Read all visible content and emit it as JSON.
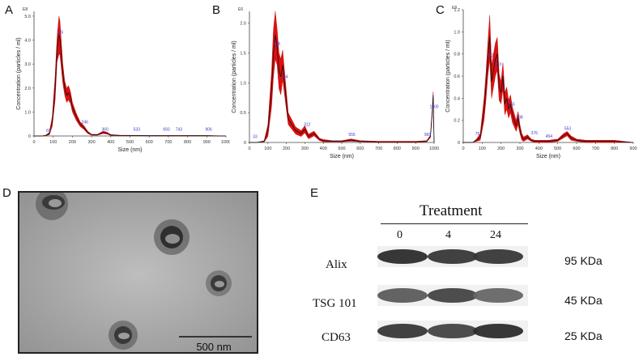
{
  "panels": {
    "A": "A",
    "B": "B",
    "C": "C",
    "D": "D",
    "E": "E"
  },
  "chart_data": [
    {
      "type": "line",
      "panel": "A",
      "exponent": "E8",
      "xlabel": "Size (nm)",
      "ylabel": "Concentration (particles / ml)",
      "xlim": [
        0,
        1000
      ],
      "ylim": [
        0,
        5.2
      ],
      "xticks": [
        "0",
        "100",
        "200",
        "300",
        "400",
        "500",
        "600",
        "700",
        "800",
        "900",
        "1000"
      ],
      "yticks": [
        "0",
        "1.0",
        "2.0",
        "3.0",
        "4.0",
        "5.0"
      ],
      "series": [
        {
          "x": [
            0,
            40,
            60,
            80,
            95,
            110,
            120,
            130,
            135,
            140,
            150,
            160,
            170,
            180,
            190,
            200,
            220,
            240,
            260,
            280,
            300,
            330,
            360,
            380,
            400,
            450,
            500,
            600,
            700,
            800,
            900,
            1000
          ],
          "y": [
            0,
            0,
            0.02,
            0.1,
            0.6,
            2.0,
            3.6,
            4.2,
            4.1,
            3.6,
            2.6,
            2.0,
            1.7,
            1.8,
            1.6,
            1.2,
            0.8,
            0.5,
            0.35,
            0.15,
            0.05,
            0.05,
            0.15,
            0.12,
            0.04,
            0.02,
            0.02,
            0.01,
            0.01,
            0.01,
            0.01,
            0
          ],
          "ci": [
            0,
            0,
            0.01,
            0.05,
            0.2,
            0.5,
            0.5,
            0.8,
            0.7,
            0.6,
            0.4,
            0.3,
            0.3,
            0.3,
            0.25,
            0.2,
            0.15,
            0.1,
            0.08,
            0.05,
            0.02,
            0.02,
            0.05,
            0.04,
            0.02,
            0.01,
            0.01,
            0.01,
            0.01,
            0.01,
            0.01,
            0
          ]
        }
      ],
      "annotations": [
        {
          "x": 135,
          "y": 4.2,
          "label": "135"
        },
        {
          "x": 75,
          "y": 0.1,
          "label": "69"
        },
        {
          "x": 265,
          "y": 0.45,
          "label": "246"
        },
        {
          "x": 370,
          "y": 0.15,
          "label": "360"
        },
        {
          "x": 535,
          "y": 0.15,
          "label": "533"
        },
        {
          "x": 690,
          "y": 0.15,
          "label": "693"
        },
        {
          "x": 755,
          "y": 0.15,
          "label": "743"
        },
        {
          "x": 910,
          "y": 0.15,
          "label": "906"
        }
      ]
    },
    {
      "type": "line",
      "panel": "B",
      "exponent": "E6",
      "xlabel": "Size (nm)",
      "ylabel": "Concentration (particles / ml)",
      "xlim": [
        0,
        1000
      ],
      "ylim": [
        0,
        2.2
      ],
      "xticks": [
        "0",
        "100",
        "200",
        "300",
        "400",
        "500",
        "600",
        "700",
        "800",
        "900",
        "1000"
      ],
      "yticks": [
        "0",
        "0.5",
        "1.0",
        "1.5",
        "2.0"
      ],
      "series": [
        {
          "x": [
            0,
            40,
            80,
            100,
            120,
            130,
            140,
            150,
            160,
            170,
            180,
            190,
            200,
            210,
            230,
            250,
            280,
            300,
            320,
            350,
            380,
            400,
            450,
            500,
            550,
            600,
            700,
            800,
            900,
            960,
            980,
            990,
            995,
            1000
          ],
          "y": [
            0,
            0,
            0.02,
            0.2,
            0.9,
            1.5,
            1.8,
            1.6,
            1.2,
            1.1,
            1.3,
            1.0,
            0.7,
            0.4,
            0.3,
            0.2,
            0.15,
            0.22,
            0.1,
            0.15,
            0.05,
            0.03,
            0.02,
            0.02,
            0.04,
            0.02,
            0.01,
            0.01,
            0.01,
            0.02,
            0.1,
            0.5,
            0.8,
            0
          ],
          "ci": [
            0,
            0,
            0.01,
            0.1,
            0.3,
            0.4,
            0.4,
            0.3,
            0.3,
            0.3,
            0.25,
            0.2,
            0.15,
            0.1,
            0.08,
            0.06,
            0.05,
            0.06,
            0.04,
            0.04,
            0.02,
            0.02,
            0.01,
            0.01,
            0.02,
            0.01,
            0.01,
            0.01,
            0.01,
            0.01,
            0.02,
            0.05,
            0.05,
            0
          ]
        }
      ],
      "annotations": [
        {
          "x": 30,
          "y": 0.05,
          "label": "33"
        },
        {
          "x": 148,
          "y": 1.6,
          "label": "148"
        },
        {
          "x": 190,
          "y": 1.05,
          "label": "194"
        },
        {
          "x": 312,
          "y": 0.25,
          "label": "312"
        },
        {
          "x": 555,
          "y": 0.08,
          "label": "555"
        },
        {
          "x": 965,
          "y": 0.08,
          "label": "969"
        },
        {
          "x": 1000,
          "y": 0.55,
          "label": "1000"
        }
      ]
    },
    {
      "type": "line",
      "panel": "C",
      "exponent": "E8",
      "xlabel": "Size (nm)",
      "ylabel": "Concentration (particles / ml)",
      "xlim": [
        0,
        900
      ],
      "ylim": [
        0,
        1.2
      ],
      "xticks": [
        "0",
        "100",
        "200",
        "300",
        "400",
        "500",
        "600",
        "700",
        "800",
        "900"
      ],
      "yticks": [
        "0",
        "0.2",
        "0.4",
        "0.6",
        "0.8",
        "1.0",
        "1.2"
      ],
      "series": [
        {
          "x": [
            0,
            50,
            70,
            90,
            110,
            120,
            130,
            140,
            150,
            160,
            170,
            180,
            190,
            200,
            210,
            220,
            230,
            240,
            250,
            260,
            270,
            280,
            290,
            300,
            310,
            320,
            340,
            360,
            380,
            400,
            450,
            500,
            530,
            550,
            570,
            600,
            650,
            700,
            800,
            900
          ],
          "y": [
            0,
            0,
            0.02,
            0.05,
            0.3,
            0.5,
            0.75,
            0.95,
            0.55,
            0.65,
            0.75,
            0.8,
            0.5,
            0.45,
            0.6,
            0.35,
            0.4,
            0.3,
            0.35,
            0.25,
            0.2,
            0.15,
            0.22,
            0.12,
            0.05,
            0.03,
            0.05,
            0.02,
            0.01,
            0.01,
            0.01,
            0.02,
            0.06,
            0.08,
            0.04,
            0.02,
            0.01,
            0.01,
            0.01,
            0
          ],
          "ci": [
            0,
            0,
            0.01,
            0.03,
            0.1,
            0.12,
            0.15,
            0.2,
            0.15,
            0.15,
            0.15,
            0.15,
            0.12,
            0.1,
            0.12,
            0.1,
            0.1,
            0.08,
            0.08,
            0.07,
            0.06,
            0.05,
            0.06,
            0.04,
            0.03,
            0.02,
            0.02,
            0.01,
            0.01,
            0.01,
            0.01,
            0.01,
            0.02,
            0.02,
            0.02,
            0.01,
            0.01,
            0.01,
            0.01,
            0
          ]
        }
      ],
      "annotations": [
        {
          "x": 75,
          "y": 0.05,
          "label": "75"
        },
        {
          "x": 143,
          "y": 0.76,
          "label": "143"
        },
        {
          "x": 183,
          "y": 0.68,
          "label": "183"
        },
        {
          "x": 255,
          "y": 0.32,
          "label": "255"
        },
        {
          "x": 298,
          "y": 0.2,
          "label": "298"
        },
        {
          "x": 376,
          "y": 0.06,
          "label": "376"
        },
        {
          "x": 454,
          "y": 0.03,
          "label": "454"
        },
        {
          "x": 553,
          "y": 0.1,
          "label": "553"
        }
      ]
    }
  ],
  "tem": {
    "scale_bar_label": "500 nm"
  },
  "western_blot": {
    "header": "Treatment",
    "lanes": [
      "0",
      "4",
      "24"
    ],
    "rows": [
      {
        "protein": "Alix",
        "size": "95 KDa",
        "intensity": [
          0.9,
          0.85,
          0.85
        ]
      },
      {
        "protein": "TSG 101",
        "size": "45 KDa",
        "intensity": [
          0.7,
          0.8,
          0.65
        ]
      },
      {
        "protein": "CD63",
        "size": "25 KDa",
        "intensity": [
          0.85,
          0.8,
          0.9
        ]
      }
    ]
  }
}
